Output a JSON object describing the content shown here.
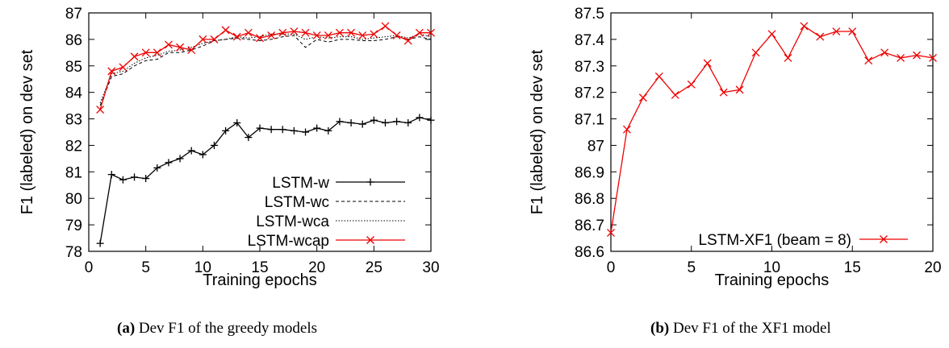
{
  "chart_data": [
    {
      "type": "line",
      "xlabel": "Training epochs",
      "ylabel": "F1 (labeled) on dev set",
      "xlim": [
        0,
        30
      ],
      "ylim": [
        78,
        87
      ],
      "xticks": [
        "0",
        "5",
        "10",
        "15",
        "20",
        "25",
        "30"
      ],
      "yticks": [
        "78",
        "79",
        "80",
        "81",
        "82",
        "83",
        "84",
        "85",
        "86",
        "87"
      ],
      "legend_position": "bottom-right",
      "series": [
        {
          "name": "LSTM-w",
          "color": "#000000",
          "marker": "plus",
          "dash": "solid",
          "x": [
            1,
            2,
            3,
            4,
            5,
            6,
            7,
            8,
            9,
            10,
            11,
            12,
            13,
            14,
            15,
            16,
            17,
            18,
            19,
            20,
            21,
            22,
            23,
            24,
            25,
            26,
            27,
            28,
            29,
            30
          ],
          "values": [
            78.3,
            80.9,
            80.7,
            80.8,
            80.75,
            81.15,
            81.35,
            81.5,
            81.8,
            81.65,
            82.0,
            82.55,
            82.85,
            82.3,
            82.65,
            82.6,
            82.6,
            82.55,
            82.5,
            82.65,
            82.55,
            82.9,
            82.85,
            82.8,
            82.95,
            82.85,
            82.9,
            82.85,
            83.05,
            82.95
          ]
        },
        {
          "name": "LSTM-wc",
          "color": "#000000",
          "marker": "none",
          "dash": "dashed",
          "x": [
            1,
            2,
            3,
            4,
            5,
            6,
            7,
            8,
            9,
            10,
            11,
            12,
            13,
            14,
            15,
            16,
            17,
            18,
            19,
            20,
            21,
            22,
            23,
            24,
            25,
            26,
            27,
            28,
            29,
            30
          ],
          "values": [
            83.5,
            84.6,
            84.7,
            85.0,
            85.2,
            85.25,
            85.5,
            85.5,
            85.6,
            85.75,
            85.95,
            86.0,
            86.05,
            86.0,
            85.95,
            86.0,
            86.1,
            86.15,
            85.7,
            86.0,
            85.9,
            86.0,
            86.0,
            85.95,
            85.95,
            86.0,
            86.1,
            86.0,
            86.1,
            86.0
          ]
        },
        {
          "name": "LSTM-wca",
          "color": "#000000",
          "marker": "none",
          "dash": "dotted",
          "x": [
            1,
            2,
            3,
            4,
            5,
            6,
            7,
            8,
            9,
            10,
            11,
            12,
            13,
            14,
            15,
            16,
            17,
            18,
            19,
            20,
            21,
            22,
            23,
            24,
            25,
            26,
            27,
            28,
            29,
            30
          ],
          "values": [
            83.6,
            84.7,
            84.8,
            85.1,
            85.3,
            85.4,
            85.55,
            85.6,
            85.7,
            85.85,
            85.95,
            86.0,
            86.1,
            86.05,
            86.1,
            86.2,
            86.2,
            86.2,
            86.0,
            86.1,
            86.05,
            86.1,
            86.1,
            86.0,
            86.05,
            86.1,
            86.15,
            86.05,
            86.2,
            86.1
          ]
        },
        {
          "name": "LSTM-wcap",
          "color": "#ee0000",
          "marker": "x",
          "dash": "solid",
          "x": [
            1,
            2,
            3,
            4,
            5,
            6,
            7,
            8,
            9,
            10,
            11,
            12,
            13,
            14,
            15,
            16,
            17,
            18,
            19,
            20,
            21,
            22,
            23,
            24,
            25,
            26,
            27,
            28,
            29,
            30
          ],
          "values": [
            83.35,
            84.8,
            84.95,
            85.35,
            85.5,
            85.5,
            85.8,
            85.7,
            85.6,
            86.0,
            86.0,
            86.35,
            86.1,
            86.25,
            86.05,
            86.15,
            86.25,
            86.3,
            86.25,
            86.15,
            86.15,
            86.25,
            86.25,
            86.15,
            86.2,
            86.5,
            86.15,
            85.95,
            86.25,
            86.25
          ]
        }
      ]
    },
    {
      "type": "line",
      "xlabel": "Training epochs",
      "ylabel": "F1 (labeled) on dev set",
      "xlim": [
        0,
        20
      ],
      "ylim": [
        86.6,
        87.5
      ],
      "xticks": [
        "0",
        "5",
        "10",
        "15",
        "20"
      ],
      "yticks": [
        "86.6",
        "86.7",
        "86.8",
        "86.9",
        "87",
        "87.1",
        "87.2",
        "87.3",
        "87.4",
        "87.5"
      ],
      "legend_position": "bottom-right",
      "series": [
        {
          "name": "LSTM-XF1 (beam = 8)",
          "color": "#ee0000",
          "marker": "x",
          "dash": "solid",
          "x": [
            0,
            1,
            2,
            3,
            4,
            5,
            6,
            7,
            8,
            9,
            10,
            11,
            12,
            13,
            14,
            15,
            16,
            17,
            18,
            19,
            20
          ],
          "values": [
            86.67,
            87.06,
            87.18,
            87.26,
            87.19,
            87.23,
            87.31,
            87.2,
            87.21,
            87.35,
            87.42,
            87.33,
            87.45,
            87.41,
            87.43,
            87.43,
            87.32,
            87.35,
            87.33,
            87.34,
            87.33
          ]
        }
      ]
    }
  ],
  "captions": [
    {
      "label": "(a)",
      "text": "Dev F1 of the greedy models"
    },
    {
      "label": "(b)",
      "text": "Dev F1 of the XF1 model"
    }
  ]
}
